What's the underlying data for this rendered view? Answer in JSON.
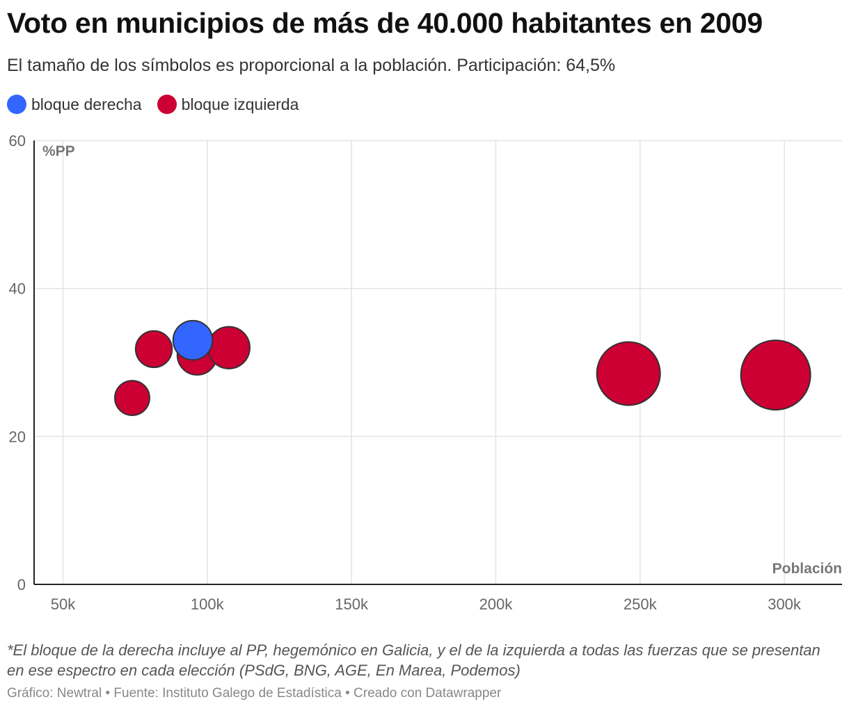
{
  "title": "Voto en municipios de más de 40.000 habitantes en 2009",
  "subtitle": "El tamaño de los símbolos es proporcional a la población. Participación: 64,5%",
  "legend": [
    {
      "label": "bloque derecha",
      "color": "#3366ff"
    },
    {
      "label": "bloque izquierda",
      "color": "#cc0033"
    }
  ],
  "notes": "*El bloque de la derecha incluye al PP, hegemónico en Galicia, y el de la izquierda a todas las fuerzas que se presentan en ese espectro en cada elección (PSdG, BNG, AGE, En Marea, Podemos)",
  "footer": "Gráfico: Newtral • Fuente: Instituto Galego de Estadística • Creado con Datawrapper",
  "chart_data": {
    "type": "scatter",
    "title": "Voto en municipios de más de 40.000 habitantes en 2009",
    "xlabel": "Población",
    "ylabel": "%PP",
    "xlim": [
      40000,
      320000
    ],
    "ylim": [
      0,
      60
    ],
    "x_ticks": [
      50000,
      100000,
      150000,
      200000,
      250000,
      300000
    ],
    "x_tick_labels": [
      "50k",
      "100k",
      "150k",
      "200k",
      "250k",
      "300k"
    ],
    "y_ticks": [
      0,
      20,
      40,
      60
    ],
    "y_tick_labels": [
      "0",
      "20",
      "40",
      "60"
    ],
    "grid": true,
    "legend_position": "top-left",
    "bubble_size": "población",
    "series": [
      {
        "name": "bloque izquierda",
        "color": "#cc0033",
        "points": [
          {
            "x": 74000,
            "y": 25.2
          },
          {
            "x": 81500,
            "y": 31.8
          },
          {
            "x": 96500,
            "y": 31.0
          },
          {
            "x": 107500,
            "y": 32.0
          },
          {
            "x": 246000,
            "y": 28.5
          },
          {
            "x": 297000,
            "y": 28.3
          }
        ]
      },
      {
        "name": "bloque derecha",
        "color": "#3366ff",
        "points": [
          {
            "x": 95000,
            "y": 33.0
          }
        ]
      }
    ]
  }
}
